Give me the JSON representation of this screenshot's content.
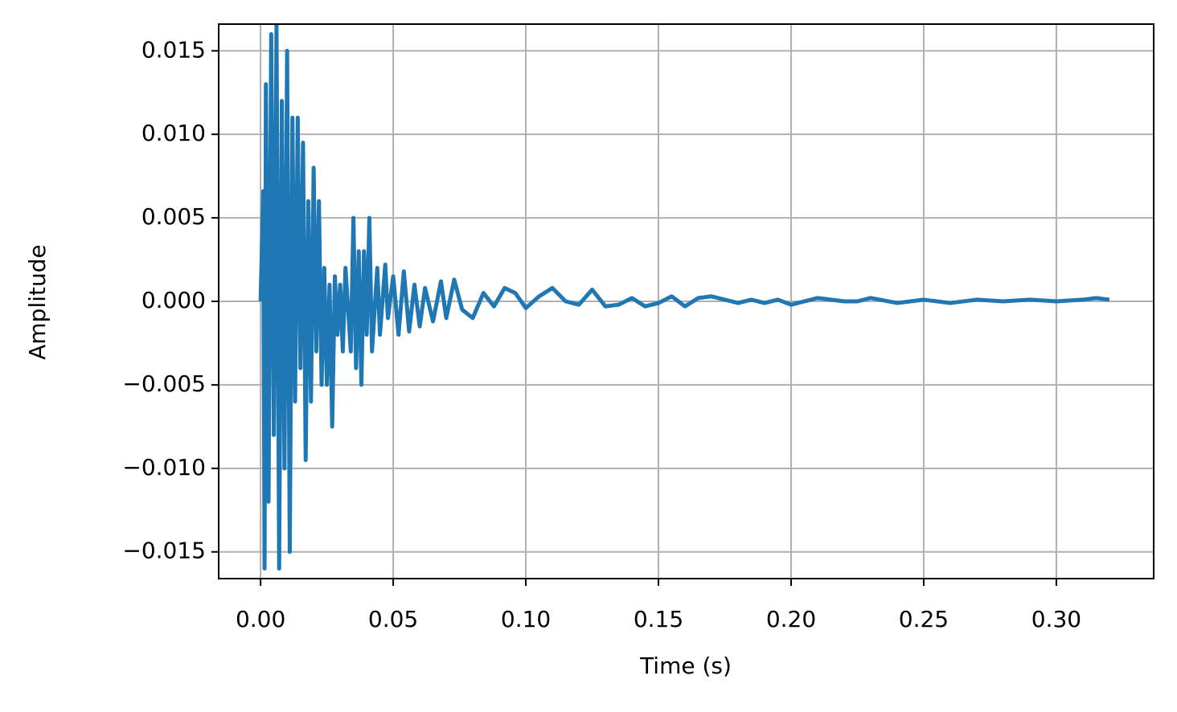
{
  "chart_data": {
    "type": "line",
    "xlabel": "Time (s)",
    "ylabel": "Amplitude",
    "xlim": [
      -0.0158,
      0.3367
    ],
    "ylim": [
      -0.0166,
      0.0166
    ],
    "xticks": [
      {
        "value": 0,
        "label": "0.00"
      },
      {
        "value": 0.05,
        "label": "0.05"
      },
      {
        "value": 0.1,
        "label": "0.10"
      },
      {
        "value": 0.15,
        "label": "0.15"
      },
      {
        "value": 0.2,
        "label": "0.20"
      },
      {
        "value": 0.25,
        "label": "0.25"
      },
      {
        "value": 0.3,
        "label": "0.30"
      }
    ],
    "yticks": [
      {
        "value": -0.015,
        "label": "−0.015"
      },
      {
        "value": -0.01,
        "label": "−0.010"
      },
      {
        "value": -0.005,
        "label": "−0.005"
      },
      {
        "value": 0,
        "label": "0.000"
      },
      {
        "value": 0.005,
        "label": "0.005"
      },
      {
        "value": 0.01,
        "label": "0.010"
      },
      {
        "value": 0.015,
        "label": "0.015"
      }
    ],
    "grid": true,
    "x": [
      0,
      0.001,
      0.0015,
      0.002,
      0.003,
      0.004,
      0.005,
      0.006,
      0.007,
      0.008,
      0.009,
      0.01,
      0.011,
      0.012,
      0.013,
      0.014,
      0.015,
      0.016,
      0.017,
      0.018,
      0.019,
      0.02,
      0.021,
      0.022,
      0.023,
      0.024,
      0.025,
      0.026,
      0.027,
      0.028,
      0.029,
      0.03,
      0.031,
      0.032,
      0.034,
      0.035,
      0.036,
      0.037,
      0.038,
      0.039,
      0.04,
      0.041,
      0.042,
      0.044,
      0.045,
      0.047,
      0.048,
      0.05,
      0.052,
      0.054,
      0.056,
      0.058,
      0.06,
      0.062,
      0.065,
      0.068,
      0.07,
      0.073,
      0.076,
      0.08,
      0.084,
      0.088,
      0.092,
      0.096,
      0.1,
      0.105,
      0.11,
      0.115,
      0.12,
      0.125,
      0.13,
      0.135,
      0.14,
      0.145,
      0.15,
      0.155,
      0.16,
      0.165,
      0.17,
      0.175,
      0.18,
      0.185,
      0.19,
      0.195,
      0.2,
      0.21,
      0.22,
      0.225,
      0.23,
      0.24,
      0.25,
      0.26,
      0.27,
      0.28,
      0.29,
      0.3,
      0.31,
      0.315,
      0.32
    ],
    "series": [
      {
        "name": "Amplitude",
        "color": "#1f77b4",
        "values": [
          0,
          0.0066,
          -0.016,
          0.013,
          -0.012,
          0.016,
          -0.008,
          0.0166,
          -0.016,
          0.012,
          -0.01,
          0.015,
          -0.015,
          0.011,
          -0.006,
          0.011,
          -0.004,
          0.0095,
          -0.0095,
          0.006,
          -0.006,
          0.008,
          -0.003,
          0.006,
          -0.005,
          0.002,
          -0.005,
          0.001,
          -0.0075,
          0.0015,
          -0.002,
          0.001,
          -0.003,
          0.002,
          -0.003,
          0.005,
          -0.004,
          0.003,
          -0.005,
          0.003,
          -0.002,
          0.005,
          -0.003,
          0.002,
          -0.002,
          0.0022,
          -0.001,
          0.0015,
          -0.002,
          0.0018,
          -0.0018,
          0.001,
          -0.0015,
          0.0008,
          -0.0012,
          0.0012,
          -0.001,
          0.0013,
          -0.0005,
          -0.001,
          0.0005,
          -0.0003,
          0.0008,
          0.0005,
          -0.0004,
          0.0003,
          0.0008,
          0,
          -0.0002,
          0.0007,
          -0.0003,
          -0.0002,
          0.0002,
          -0.0003,
          -0.0001,
          0.0003,
          -0.0003,
          0.0002,
          0.0003,
          0.0001,
          -0.0001,
          0.0001,
          -0.0001,
          0.0001,
          -0.0002,
          0.0002,
          0,
          0,
          0.0002,
          -0.0001,
          0.0001,
          -0.0001,
          0.0001,
          0,
          0.0001,
          0,
          0.0001,
          0.0002,
          0.0001
        ]
      }
    ]
  }
}
